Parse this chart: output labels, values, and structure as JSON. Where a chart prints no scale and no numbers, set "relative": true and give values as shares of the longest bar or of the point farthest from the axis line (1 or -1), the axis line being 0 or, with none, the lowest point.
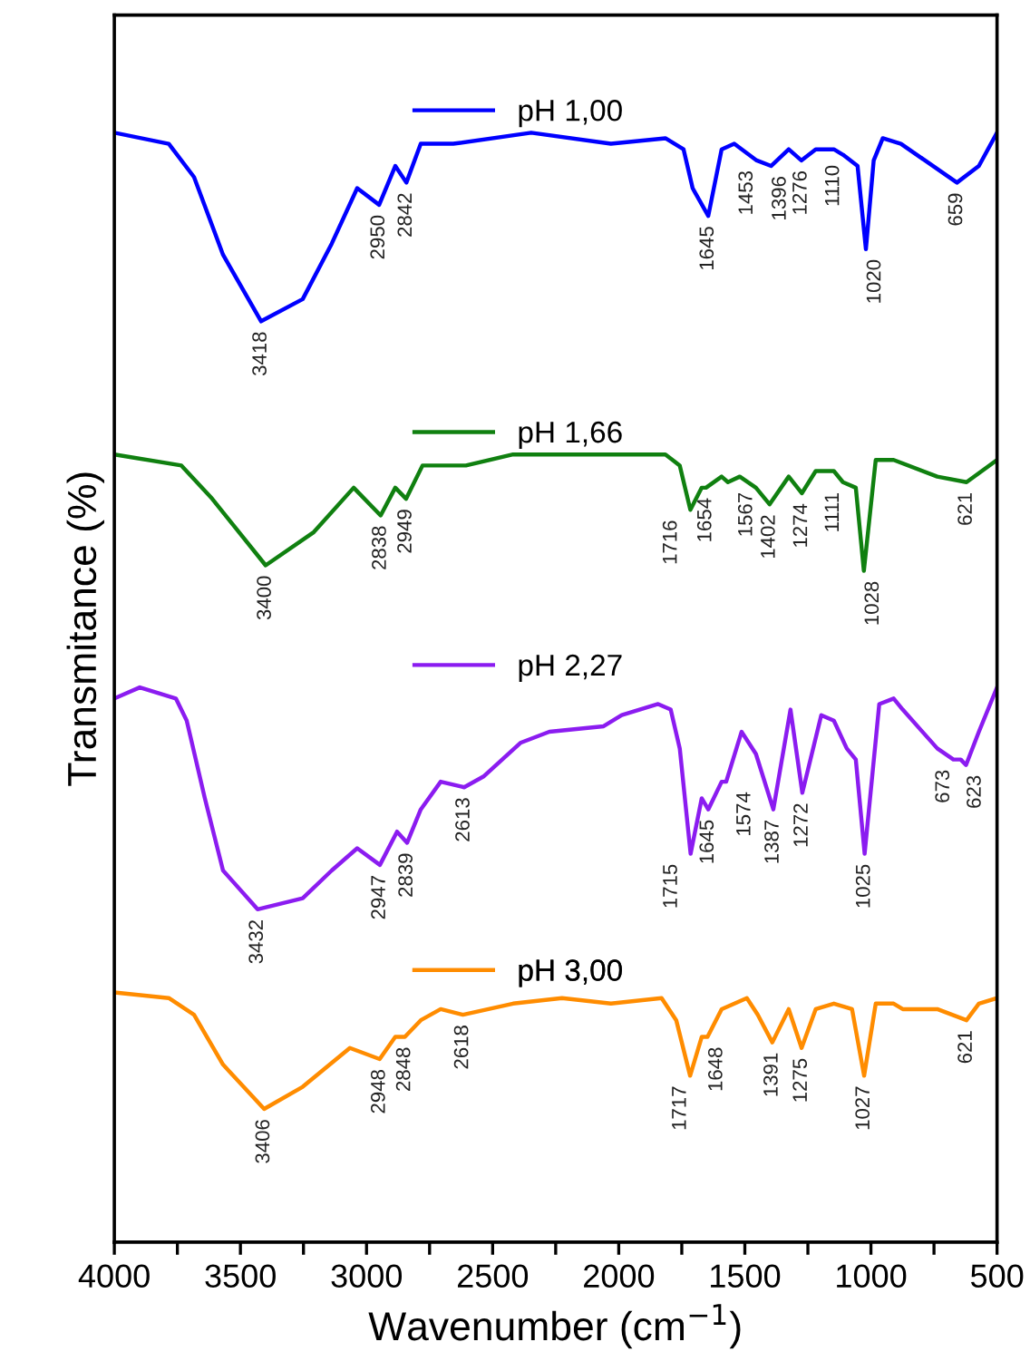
{
  "chart_data": {
    "type": "line",
    "relative": true,
    "xlabel": "Wavenumber (cm$^{−1}$)",
    "ylabel": "Transmitance (%)",
    "xlim": [
      4000,
      500
    ],
    "xticks": [
      4000,
      {
        "value": 3750,
        "label": null
      },
      3500,
      {
        "value": 3250,
        "label": null
      },
      3000,
      {
        "value": 2750,
        "label": null
      },
      2500,
      {
        "value": 2250,
        "label": null
      },
      2000,
      {
        "value": 1750,
        "label": null
      },
      1500,
      {
        "value": 1250,
        "label": null
      },
      1000,
      {
        "value": 750,
        "label": null
      },
      500
    ],
    "tick_labels": "x",
    "grid": false,
    "legend": "top",
    "line_style": "solid",
    "marker": "none",
    "series": [
      {
        "name": "pH 1,00",
        "color": "#0000ff",
        "x": [
          4000,
          3784,
          3684,
          3569,
          3418,
          3253,
          3138,
          3037,
          2950,
          2886,
          2842,
          2785,
          2656,
          2347,
          2031,
          1815,
          1743,
          1707,
          1645,
          1592,
          1542,
          1453,
          1396,
          1326,
          1276,
          1219,
          1147,
          1110,
          1053,
          1020,
          989,
          953,
          881,
          659,
          572,
          500
        ],
        "values": [
          1.0,
          0.99,
          0.96,
          0.89,
          0.83,
          0.85,
          0.9,
          0.95,
          0.935,
          0.97,
          0.955,
          0.99,
          0.99,
          1.0,
          0.99,
          0.995,
          0.985,
          0.95,
          0.925,
          0.985,
          0.99,
          0.975,
          0.97,
          0.985,
          0.975,
          0.985,
          0.985,
          0.98,
          0.97,
          0.895,
          0.975,
          0.995,
          0.99,
          0.955,
          0.97,
          1.0
        ]
      },
      {
        "name": "pH 1,66",
        "color": "#108010",
        "x": [
          4000,
          3734,
          3612,
          3400,
          3209,
          3051,
          2944,
          2886,
          2843,
          2778,
          2606,
          2419,
          2060,
          1815,
          1758,
          1716,
          1671,
          1654,
          1592,
          1567,
          1520,
          1456,
          1402,
          1326,
          1274,
          1219,
          1147,
          1111,
          1060,
          1028,
          981,
          910,
          737,
          621,
          500
        ],
        "values": [
          0.71,
          0.7,
          0.67,
          0.61,
          0.64,
          0.68,
          0.655,
          0.68,
          0.67,
          0.7,
          0.7,
          0.71,
          0.71,
          0.71,
          0.7,
          0.66,
          0.68,
          0.68,
          0.69,
          0.685,
          0.69,
          0.68,
          0.665,
          0.69,
          0.675,
          0.695,
          0.695,
          0.685,
          0.68,
          0.605,
          0.705,
          0.705,
          0.69,
          0.685,
          0.705
        ]
      },
      {
        "name": "pH 2,27",
        "color": "#8b1cf0",
        "x": [
          4000,
          3899,
          3756,
          3713,
          3641,
          3569,
          3432,
          3253,
          3138,
          3037,
          2947,
          2879,
          2839,
          2785,
          2706,
          2613,
          2534,
          2390,
          2275,
          2060,
          1988,
          1844,
          1794,
          1758,
          1715,
          1671,
          1645,
          1592,
          1574,
          1513,
          1456,
          1387,
          1319,
          1272,
          1197,
          1147,
          1096,
          1060,
          1025,
          967,
          910,
          874,
          737,
          673,
          644,
          623,
          572,
          500
        ],
        "values": [
          0.49,
          0.5,
          0.49,
          0.47,
          0.4,
          0.335,
          0.3,
          0.31,
          0.335,
          0.355,
          0.34,
          0.37,
          0.36,
          0.39,
          0.415,
          0.41,
          0.42,
          0.45,
          0.46,
          0.465,
          0.475,
          0.485,
          0.48,
          0.445,
          0.35,
          0.4,
          0.39,
          0.415,
          0.415,
          0.46,
          0.44,
          0.39,
          0.48,
          0.405,
          0.475,
          0.47,
          0.445,
          0.435,
          0.35,
          0.485,
          0.49,
          0.48,
          0.445,
          0.435,
          0.435,
          0.43,
          0.46,
          0.5
        ]
      },
      {
        "name": "pH 3,00",
        "color": "#ff8c00",
        "x": [
          4000,
          3784,
          3684,
          3569,
          3406,
          3253,
          3066,
          2948,
          2886,
          2848,
          2785,
          2706,
          2618,
          2419,
          2225,
          2031,
          1830,
          1772,
          1717,
          1671,
          1648,
          1592,
          1492,
          1449,
          1391,
          1326,
          1275,
          1219,
          1147,
          1075,
          1027,
          981,
          910,
          874,
          737,
          621,
          572,
          500
        ],
        "values": [
          0.225,
          0.22,
          0.205,
          0.16,
          0.12,
          0.14,
          0.175,
          0.165,
          0.185,
          0.185,
          0.2,
          0.21,
          0.205,
          0.215,
          0.22,
          0.215,
          0.22,
          0.2,
          0.15,
          0.185,
          0.185,
          0.21,
          0.22,
          0.205,
          0.18,
          0.21,
          0.175,
          0.21,
          0.215,
          0.21,
          0.15,
          0.215,
          0.215,
          0.21,
          0.21,
          0.2,
          0.215,
          0.22
        ]
      }
    ],
    "annotations": [
      {
        "text": "3418",
        "x": 3418,
        "y": 0.83
      },
      {
        "text": "2950",
        "x": 2950,
        "y": 0.935
      },
      {
        "text": "2842",
        "x": 2842,
        "y": 0.955
      },
      {
        "text": "1645",
        "x": 1645,
        "y": 0.925
      },
      {
        "text": "1453",
        "x": 1453,
        "y": 0.975
      },
      {
        "text": "1396",
        "x": 1396,
        "y": 0.97
      },
      {
        "text": "1276",
        "x": 1276,
        "y": 0.975
      },
      {
        "text": "1110",
        "x": 1110,
        "y": 0.98
      },
      {
        "text": "1020",
        "x": 1020,
        "y": 0.895
      },
      {
        "text": "659",
        "x": 659,
        "y": 0.955
      },
      {
        "text": "3400",
        "x": 3400,
        "y": 0.61
      },
      {
        "text": "2838",
        "x": 2944,
        "y": 0.655
      },
      {
        "text": "2949",
        "x": 2843,
        "y": 0.67
      },
      {
        "text": "1716",
        "x": 1716,
        "y": 0.66
      },
      {
        "text": "1654",
        "x": 1654,
        "y": 0.68
      },
      {
        "text": "1567",
        "x": 1567,
        "y": 0.685
      },
      {
        "text": "1402",
        "x": 1402,
        "y": 0.665
      },
      {
        "text": "1274",
        "x": 1274,
        "y": 0.675
      },
      {
        "text": "1111",
        "x": 1111,
        "y": 0.685
      },
      {
        "text": "1028",
        "x": 1028,
        "y": 0.605
      },
      {
        "text": "621",
        "x": 621,
        "y": 0.685
      },
      {
        "text": "3432",
        "x": 3432,
        "y": 0.3
      },
      {
        "text": "2947",
        "x": 2947,
        "y": 0.34
      },
      {
        "text": "2839",
        "x": 2839,
        "y": 0.36
      },
      {
        "text": "2613",
        "x": 2613,
        "y": 0.41
      },
      {
        "text": "1715",
        "x": 1715,
        "y": 0.35
      },
      {
        "text": "1645",
        "x": 1645,
        "y": 0.39
      },
      {
        "text": "1574",
        "x": 1574,
        "y": 0.415
      },
      {
        "text": "1387",
        "x": 1387,
        "y": 0.39
      },
      {
        "text": "1272",
        "x": 1272,
        "y": 0.405
      },
      {
        "text": "1025",
        "x": 1025,
        "y": 0.35
      },
      {
        "text": "673",
        "x": 673,
        "y": 0.435
      },
      {
        "text": "623",
        "x": 623,
        "y": 0.43
      },
      {
        "text": "3406",
        "x": 3406,
        "y": 0.12
      },
      {
        "text": "2948",
        "x": 2948,
        "y": 0.165
      },
      {
        "text": "2848",
        "x": 2848,
        "y": 0.185
      },
      {
        "text": "2618",
        "x": 2618,
        "y": 0.205
      },
      {
        "text": "1717",
        "x": 1717,
        "y": 0.15
      },
      {
        "text": "1648",
        "x": 1648,
        "y": 0.185
      },
      {
        "text": "1391",
        "x": 1391,
        "y": 0.18
      },
      {
        "text": "1275",
        "x": 1275,
        "y": 0.175
      },
      {
        "text": "1027",
        "x": 1027,
        "y": 0.15
      },
      {
        "text": "621",
        "x": 621,
        "y": 0.2
      }
    ]
  }
}
